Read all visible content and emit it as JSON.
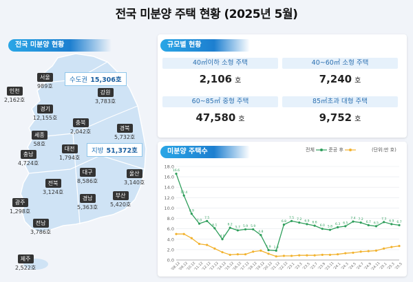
{
  "title": "전국 미분양 주택 현황  (2025년 5월)",
  "map_section": {
    "header": "전국 미분양 현황",
    "metro_callout": {
      "label": "수도권",
      "value": "15,306호"
    },
    "local_callout": {
      "label": "지방",
      "value": "51,372호"
    },
    "regions": [
      {
        "name": "서울",
        "value": "989호"
      },
      {
        "name": "인천",
        "value": "2,162호"
      },
      {
        "name": "경기",
        "value": "12,155호"
      },
      {
        "name": "강원",
        "value": "3,783호"
      },
      {
        "name": "충북",
        "value": "2,042호"
      },
      {
        "name": "세종",
        "value": "58호"
      },
      {
        "name": "충남",
        "value": "4,724호"
      },
      {
        "name": "대전",
        "value": "1,794호"
      },
      {
        "name": "경북",
        "value": "5,732호"
      },
      {
        "name": "대구",
        "value": "8,586호"
      },
      {
        "name": "전북",
        "value": "3,124호"
      },
      {
        "name": "울산",
        "value": "3,140호"
      },
      {
        "name": "경남",
        "value": "5,363호"
      },
      {
        "name": "부산",
        "value": "5,420호"
      },
      {
        "name": "광주",
        "value": "1,298호"
      },
      {
        "name": "전남",
        "value": "3,786호"
      },
      {
        "name": "제주",
        "value": "2,522호"
      }
    ]
  },
  "size_section": {
    "header": "규모별 현황",
    "cells": [
      {
        "label": "40㎡이하 소형 주택",
        "value": "2,106",
        "unit": "호"
      },
      {
        "label": "40~60㎡ 소형 주택",
        "value": "7,240",
        "unit": "호"
      },
      {
        "label": "60~85㎡ 중형 주택",
        "value": "47,580",
        "unit": "호"
      },
      {
        "label": "85㎡초과 대형 주택",
        "value": "9,752",
        "unit": "호"
      }
    ]
  },
  "chart_section": {
    "header": "미분양 주택수",
    "legend_total": "전체",
    "legend_completed": "준공 후",
    "unit_note": "(단위:만 호)"
  },
  "colors": {
    "total": "#2e9e5b",
    "completed": "#f2b22e",
    "accent": "#1d7fd0"
  },
  "chart_data": {
    "type": "line",
    "ylim": [
      0,
      18
    ],
    "yticks": [
      0,
      2,
      4,
      6,
      8,
      10,
      12,
      14,
      16,
      18
    ],
    "ytick_labels": [
      "0.0",
      "2.0",
      "4.0",
      "6.0",
      "8.0",
      "10.0",
      "12.0",
      "14.0",
      "16.0",
      "18.0"
    ],
    "grid": true,
    "legend_position": "top-right",
    "xtick_labels": [
      "'08.12",
      "'09.12",
      "'10.12",
      "'11.12",
      "'12.12",
      "'13.12",
      "'14.12",
      "'15.12",
      "'16.12",
      "'17.12",
      "'18.12",
      "'19.12",
      "'20.12",
      "'21.12",
      "'22.12",
      "'23.1",
      "'23.3",
      "'23.5",
      "'23.7",
      "'23.9",
      "'23.11",
      "'24.1",
      "'24.3",
      "'24.5",
      "'24.7",
      "'24.9",
      "'24.11",
      "'25.1",
      "'25.3",
      "'25.5"
    ],
    "series": [
      {
        "name": "전체",
        "values": [
          16.6,
          12.4,
          8.9,
          7.0,
          7.5,
          6.1,
          4.0,
          6.2,
          5.7,
          5.9,
          5.9,
          4.8,
          1.9,
          1.8,
          6.8,
          7.5,
          7.2,
          6.9,
          6.6,
          6.0,
          5.8,
          6.3,
          6.5,
          7.4,
          7.2,
          6.7,
          6.5,
          7.3,
          6.9,
          6.7
        ],
        "point_labels": [
          "16.6",
          "12.4",
          "8.9",
          "7.0",
          "7.5",
          "6.1",
          "4.0",
          "6.2",
          "5.7",
          "5.9",
          "5.9",
          "4.8",
          "1.9",
          "1.8",
          "6.8",
          "7.5",
          "7.2",
          "6.9",
          "6.6",
          "6.0",
          "5.8",
          "6.3",
          "6.5",
          "7.4",
          "7.2",
          "6.7",
          "6.5",
          "7.3",
          "6.9",
          "6.7"
        ]
      },
      {
        "name": "준공 후",
        "values": [
          5.0,
          5.0,
          4.2,
          3.1,
          2.9,
          2.2,
          1.5,
          1.0,
          1.1,
          1.1,
          1.6,
          1.8,
          1.2,
          0.7,
          0.8,
          0.8,
          0.9,
          0.9,
          0.9,
          1.0,
          1.0,
          1.1,
          1.3,
          1.4,
          1.6,
          1.7,
          1.8,
          2.2,
          2.5,
          2.7
        ]
      }
    ]
  }
}
